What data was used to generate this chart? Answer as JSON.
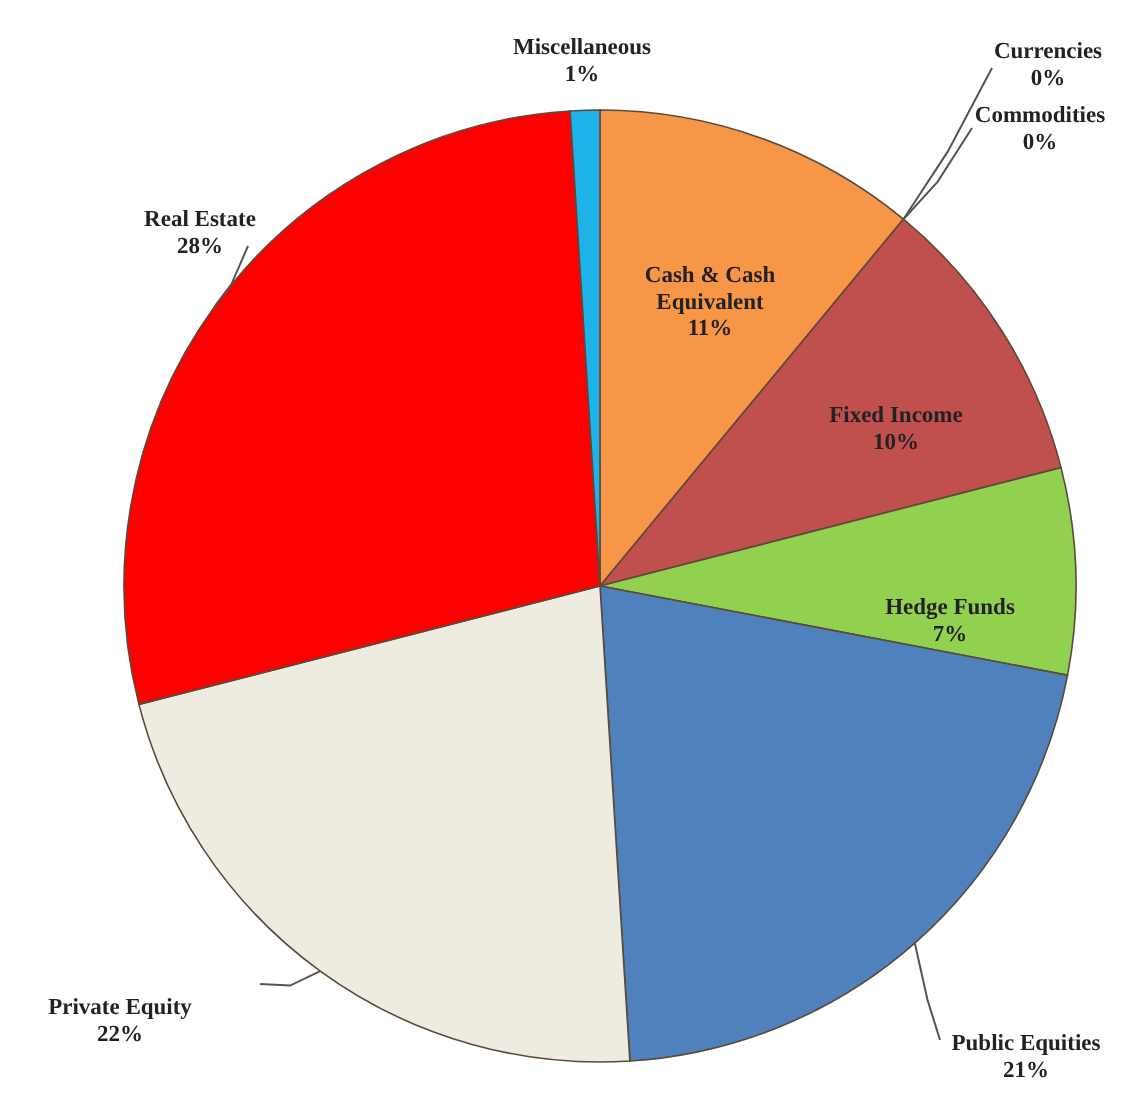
{
  "chart_data": {
    "type": "pie",
    "categories": [
      "Cash & Cash Equivalent",
      "Currencies",
      "Commodities",
      "Fixed Income",
      "Hedge Funds",
      "Public Equities",
      "Private Equity",
      "Real Estate",
      "Miscellaneous"
    ],
    "values": [
      11,
      0,
      0,
      10,
      7,
      21,
      22,
      28,
      1
    ],
    "value_labels": [
      "11%",
      "0%",
      "0%",
      "10%",
      "7%",
      "21%",
      "22%",
      "28%",
      "1%"
    ],
    "colors": [
      "#f79646",
      null,
      null,
      "#c0504d",
      "#92d050",
      "#4f81bd",
      "#eeece1",
      "#ff0000",
      "#1fb2e8"
    ]
  }
}
